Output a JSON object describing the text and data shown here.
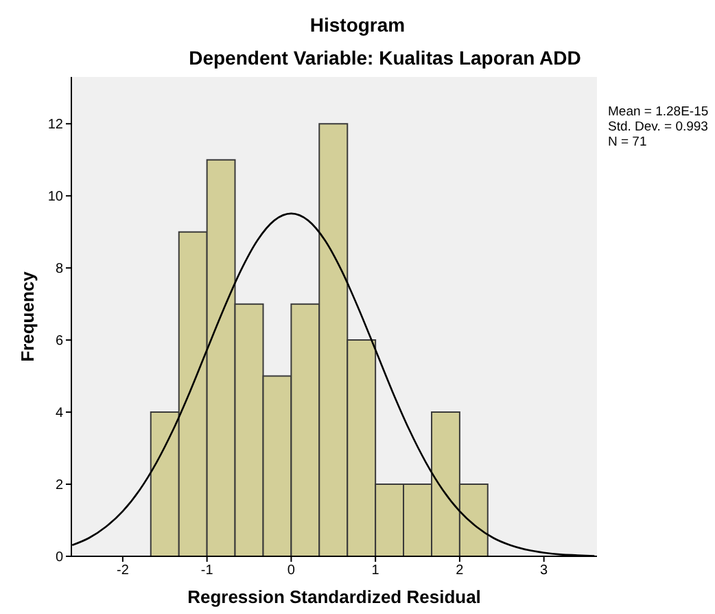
{
  "chart_data": {
    "type": "histogram",
    "title": "Histogram",
    "subtitle": "Dependent Variable: Kualitas Laporan ADD",
    "xlabel": "Regression Standardized Residual",
    "ylabel": "Frequency",
    "bins": [
      -1.667,
      -1.333,
      -1,
      -0.667,
      -0.333,
      0,
      0.333,
      0.667,
      1,
      1.333,
      1.667,
      2,
      2.333
    ],
    "values": [
      4,
      9,
      11,
      7,
      5,
      7,
      12,
      6,
      2,
      2,
      4,
      2
    ],
    "color": "#d3cf98",
    "series": [
      {
        "type": "line",
        "color": "#000000",
        "x": [
          -2.6,
          -2.4,
          -2.2,
          -2.0,
          -1.8,
          -1.6,
          -1.4,
          -1.2,
          -1.0,
          -0.8,
          -0.6,
          -0.4,
          -0.2,
          0,
          0.2,
          0.4,
          0.6,
          0.8,
          1.0,
          1.2,
          1.4,
          1.6,
          1.8,
          2.0,
          2.2,
          2.4,
          2.6,
          2.8,
          3.0,
          3.2,
          3.4,
          3.6
        ],
        "values": [
          0.31,
          0.51,
          0.82,
          1.25,
          1.84,
          2.6,
          3.52,
          4.58,
          5.73,
          6.87,
          7.92,
          8.77,
          9.32,
          9.51,
          9.32,
          8.77,
          7.92,
          6.87,
          5.73,
          4.58,
          3.52,
          2.6,
          1.84,
          1.25,
          0.82,
          0.51,
          0.31,
          0.18,
          0.1,
          0.05,
          0.03,
          0.01
        ]
      }
    ],
    "xlim": [
      -2.61,
      3.63
    ],
    "xticks": [
      -2,
      -1,
      0,
      1,
      2,
      3
    ],
    "ylim": [
      0,
      13.3
    ],
    "yticks": [
      0,
      2,
      4,
      6,
      8,
      10,
      12
    ],
    "annotations": [
      "Mean = 1.28E-15",
      "Std. Dev. = 0.993",
      "N = 71"
    ],
    "grid": false,
    "marker": "none"
  }
}
